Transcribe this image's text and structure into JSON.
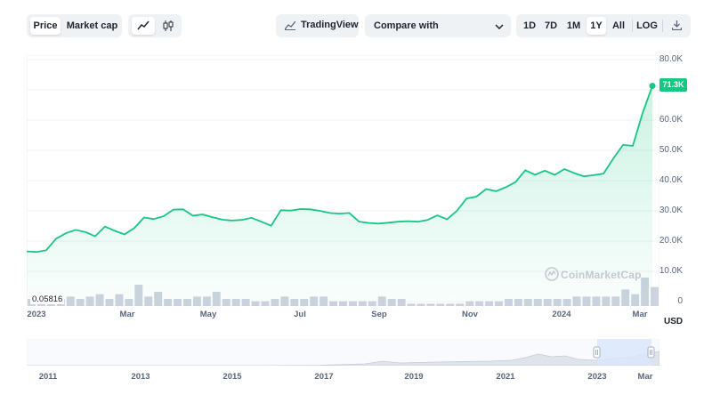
{
  "toolbar": {
    "tabs": [
      {
        "label": "Price",
        "active": true
      },
      {
        "label": "Market cap",
        "active": false
      }
    ],
    "chart_type_icons": [
      "line-chart-icon",
      "candlestick-icon"
    ],
    "tradingview_label": "TradingView",
    "compare_label": "Compare with",
    "ranges": [
      {
        "label": "1D",
        "active": false
      },
      {
        "label": "7D",
        "active": false
      },
      {
        "label": "1M",
        "active": false
      },
      {
        "label": "1Y",
        "active": true
      },
      {
        "label": "All",
        "active": false
      }
    ],
    "log_label": "LOG",
    "download_icon": "download-icon"
  },
  "chart": {
    "current_price_label": "71.3K",
    "min_label": "0.05816",
    "currency_label": "USD",
    "watermark": "CoinMarketCap",
    "colors": {
      "line": "#16c784",
      "volume": "#c5cbd9",
      "accent": "#16c784"
    }
  },
  "navigator": {
    "labels": [
      "2011",
      "2013",
      "2015",
      "2017",
      "2019",
      "2021",
      "2023",
      "Mar"
    ]
  },
  "chart_data": {
    "type": "line",
    "x_tick_labels": [
      "2023",
      "Mar",
      "May",
      "Jul",
      "Sep",
      "Nov",
      "2024",
      "Mar"
    ],
    "y_tick_labels": [
      "80.0K",
      "70.0K",
      "60.0K",
      "50.0K",
      "40.0K",
      "30.0K",
      "20.0K",
      "10.0K",
      "0"
    ],
    "ylim": [
      0,
      80000
    ],
    "price_series": [
      16600,
      16400,
      17000,
      20800,
      22600,
      23700,
      23000,
      21600,
      24800,
      23400,
      22200,
      24300,
      27800,
      27300,
      28200,
      30400,
      30500,
      28400,
      28800,
      27900,
      27100,
      26800,
      27000,
      27700,
      26400,
      25100,
      30200,
      30100,
      30600,
      30500,
      30000,
      29300,
      29100,
      29300,
      26400,
      26000,
      25800,
      26100,
      26400,
      26600,
      26400,
      27000,
      28500,
      27200,
      30000,
      34100,
      34700,
      37200,
      36500,
      37800,
      39500,
      43400,
      41900,
      43300,
      41900,
      43800,
      42500,
      41400,
      41800,
      42300,
      47300,
      51800,
      51500,
      62300,
      71300
    ],
    "volume_bars": [
      3,
      4,
      4,
      3,
      4,
      3,
      4,
      5,
      3,
      5,
      3,
      9,
      4,
      6,
      3,
      3,
      3,
      4,
      4,
      6,
      3,
      3,
      3,
      2,
      2,
      3,
      4,
      3,
      3,
      4,
      4,
      2,
      2,
      2,
      2,
      2,
      4,
      3,
      3,
      1,
      1,
      1,
      1,
      1,
      1,
      2,
      2,
      2,
      2,
      3,
      3,
      3,
      3,
      3,
      3,
      3,
      4,
      4,
      4,
      4,
      4,
      7,
      5,
      12,
      8
    ],
    "grid": true
  }
}
